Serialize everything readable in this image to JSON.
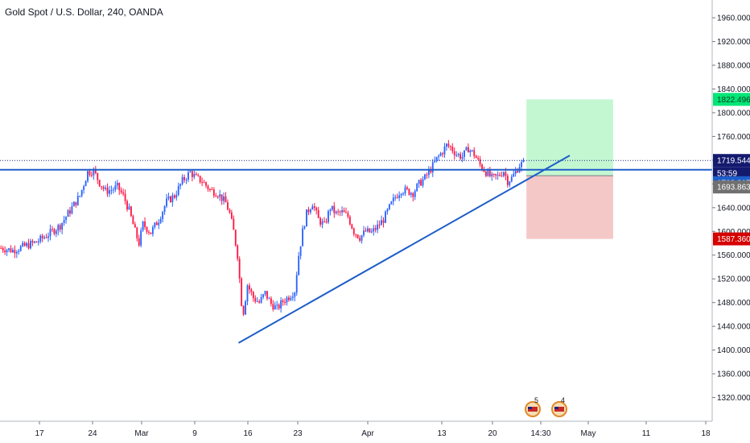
{
  "header": {
    "title": "Gold Spot / U.S. Dollar, 240, OANDA"
  },
  "colors": {
    "up": "#2962ff",
    "down": "#ff1744",
    "trendline": "#1e5ec8",
    "hline": "#1e5ec8",
    "dotted": "#1a237e",
    "target_fill": "#b9f6ca",
    "stop_fill": "#f4c2c2",
    "target_tag": "#00e676",
    "stop_tag": "#d50000",
    "price_tag": "#131a6e",
    "level_tag": "#1e5ec8",
    "countdown_tag": "#131a6e",
    "grey_tag": "#707070"
  },
  "chart_data": {
    "type": "candlestick",
    "title": "Gold Spot / U.S. Dollar, 240, OANDA",
    "ylim": [
      1280,
      1990
    ],
    "y_ticks": [
      1320,
      1360,
      1400,
      1440,
      1480,
      1520,
      1560,
      1600,
      1640,
      1680,
      1720,
      1760,
      1800,
      1840,
      1880,
      1920,
      1960
    ],
    "y_tick_labels": [
      "1320.000",
      "1360.000",
      "1400.000",
      "1440.000",
      "1480.000",
      "1520.000",
      "1560.000",
      "1600.000",
      "1640.000",
      "1680.000",
      "1720.000",
      "1760.000",
      "1800.000",
      "1840.000",
      "1880.000",
      "1920.000",
      "1960.000"
    ],
    "x_tick_labels": [
      "17",
      "24",
      "Mar",
      "9",
      "16",
      "23",
      "Apr",
      "13",
      "20",
      "14:30",
      "May",
      "11",
      "18"
    ],
    "series_trace": [
      [
        0,
        1572
      ],
      [
        6,
        1568
      ],
      [
        12,
        1575
      ],
      [
        18,
        1582
      ],
      [
        24,
        1595
      ],
      [
        30,
        1610
      ],
      [
        36,
        1640
      ],
      [
        40,
        1660
      ],
      [
        44,
        1700
      ],
      [
        47,
        1702
      ],
      [
        50,
        1682
      ],
      [
        53,
        1668
      ],
      [
        56,
        1670
      ],
      [
        59,
        1675
      ],
      [
        62,
        1660
      ],
      [
        65,
        1635
      ],
      [
        68,
        1600
      ],
      [
        70,
        1580
      ],
      [
        72,
        1612
      ],
      [
        76,
        1598
      ],
      [
        80,
        1620
      ],
      [
        84,
        1650
      ],
      [
        88,
        1660
      ],
      [
        92,
        1685
      ],
      [
        96,
        1700
      ],
      [
        99,
        1690
      ],
      [
        102,
        1685
      ],
      [
        106,
        1670
      ],
      [
        110,
        1664
      ],
      [
        114,
        1648
      ],
      [
        116,
        1630
      ],
      [
        118,
        1600
      ],
      [
        120,
        1560
      ],
      [
        121,
        1520
      ],
      [
        122,
        1480
      ],
      [
        123,
        1465
      ],
      [
        125,
        1510
      ],
      [
        128,
        1488
      ],
      [
        131,
        1480
      ],
      [
        134,
        1496
      ],
      [
        137,
        1478
      ],
      [
        140,
        1470
      ],
      [
        143,
        1482
      ],
      [
        146,
        1490
      ],
      [
        149,
        1500
      ],
      [
        151,
        1560
      ],
      [
        153,
        1600
      ],
      [
        155,
        1630
      ],
      [
        158,
        1648
      ],
      [
        161,
        1620
      ],
      [
        164,
        1610
      ],
      [
        167,
        1640
      ],
      [
        170,
        1630
      ],
      [
        173,
        1632
      ],
      [
        176,
        1625
      ],
      [
        179,
        1600
      ],
      [
        182,
        1590
      ],
      [
        185,
        1600
      ],
      [
        188,
        1598
      ],
      [
        191,
        1608
      ],
      [
        194,
        1620
      ],
      [
        197,
        1640
      ],
      [
        200,
        1658
      ],
      [
        203,
        1670
      ],
      [
        206,
        1668
      ],
      [
        209,
        1665
      ],
      [
        212,
        1680
      ],
      [
        215,
        1690
      ],
      [
        218,
        1705
      ],
      [
        221,
        1722
      ],
      [
        224,
        1735
      ],
      [
        226,
        1745
      ],
      [
        228,
        1742
      ],
      [
        231,
        1730
      ],
      [
        234,
        1726
      ],
      [
        237,
        1740
      ],
      [
        240,
        1730
      ],
      [
        243,
        1712
      ],
      [
        246,
        1700
      ],
      [
        249,
        1690
      ],
      [
        252,
        1693
      ],
      [
        255,
        1702
      ],
      [
        257,
        1685
      ],
      [
        259,
        1690
      ],
      [
        261,
        1700
      ],
      [
        263,
        1712
      ],
      [
        265,
        1715
      ],
      [
        266,
        1719.544
      ]
    ],
    "horizontal_level": 1703.817,
    "last_price": 1719.544,
    "trendline": {
      "from": [
        121,
        1412
      ],
      "to": [
        289,
        1728
      ]
    },
    "long_position": {
      "entry": 1693.863,
      "target": 1822.496,
      "stop": 1587.36,
      "bar_start": 267,
      "bar_end": 311
    },
    "price_tags": {
      "target": "1822.496",
      "last": "1719.544",
      "countdown": "53:59",
      "level": "1703.817",
      "entry": "1693.863",
      "stop": "1587.360"
    },
    "event_badges": [
      {
        "flag": "US",
        "count": "5"
      },
      {
        "flag": "US",
        "count": "4"
      }
    ]
  }
}
